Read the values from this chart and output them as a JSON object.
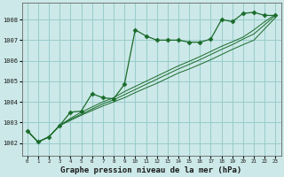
{
  "title": "Graphe pression niveau de la mer (hPa)",
  "bg_color": "#cce8e8",
  "grid_color": "#99cccc",
  "line_color": "#1a6b2a",
  "ylabel_values": [
    1002,
    1003,
    1004,
    1005,
    1006,
    1007,
    1008
  ],
  "xlim": [
    -0.5,
    23.5
  ],
  "ylim": [
    1001.4,
    1008.8
  ],
  "series1_x": [
    0,
    1,
    2,
    3,
    4,
    5,
    6,
    7,
    8,
    9,
    10,
    11,
    12,
    13,
    14,
    15,
    16,
    17,
    18,
    19,
    20,
    21,
    22,
    23
  ],
  "series1_y": [
    1002.6,
    1002.05,
    1002.3,
    1002.85,
    1003.5,
    1003.55,
    1004.4,
    1004.2,
    1004.15,
    1004.85,
    1007.5,
    1007.2,
    1007.0,
    1007.0,
    1007.0,
    1006.9,
    1006.9,
    1007.05,
    1008.0,
    1007.9,
    1008.3,
    1008.35,
    1008.2,
    1008.2
  ],
  "series2_x": [
    0,
    1,
    2,
    3,
    4,
    5,
    6,
    7,
    8,
    9,
    10,
    11,
    12,
    13,
    14,
    15,
    16,
    17,
    18,
    19,
    20,
    21,
    22,
    23
  ],
  "series2_y": [
    1002.6,
    1002.05,
    1002.3,
    1002.85,
    1003.1,
    1003.35,
    1003.58,
    1003.8,
    1004.0,
    1004.2,
    1004.45,
    1004.68,
    1004.9,
    1005.15,
    1005.4,
    1005.6,
    1005.82,
    1006.05,
    1006.3,
    1006.55,
    1006.78,
    1007.0,
    1007.55,
    1008.1
  ],
  "series3_x": [
    0,
    1,
    2,
    3,
    4,
    5,
    6,
    7,
    8,
    9,
    10,
    11,
    12,
    13,
    14,
    15,
    16,
    17,
    18,
    19,
    20,
    21,
    22,
    23
  ],
  "series3_y": [
    1002.6,
    1002.05,
    1002.3,
    1002.85,
    1003.15,
    1003.4,
    1003.65,
    1003.9,
    1004.1,
    1004.35,
    1004.6,
    1004.85,
    1005.1,
    1005.35,
    1005.6,
    1005.82,
    1006.05,
    1006.3,
    1006.55,
    1006.78,
    1007.05,
    1007.3,
    1007.75,
    1008.2
  ],
  "series4_x": [
    0,
    1,
    2,
    3,
    4,
    5,
    6,
    7,
    8,
    9,
    10,
    11,
    12,
    13,
    14,
    15,
    16,
    17,
    18,
    19,
    20,
    21,
    22,
    23
  ],
  "series4_y": [
    1002.6,
    1002.05,
    1002.3,
    1002.85,
    1003.2,
    1003.5,
    1003.75,
    1004.0,
    1004.2,
    1004.5,
    1004.75,
    1005.0,
    1005.25,
    1005.5,
    1005.75,
    1005.97,
    1006.2,
    1006.45,
    1006.7,
    1006.92,
    1007.15,
    1007.5,
    1007.9,
    1008.25
  ]
}
